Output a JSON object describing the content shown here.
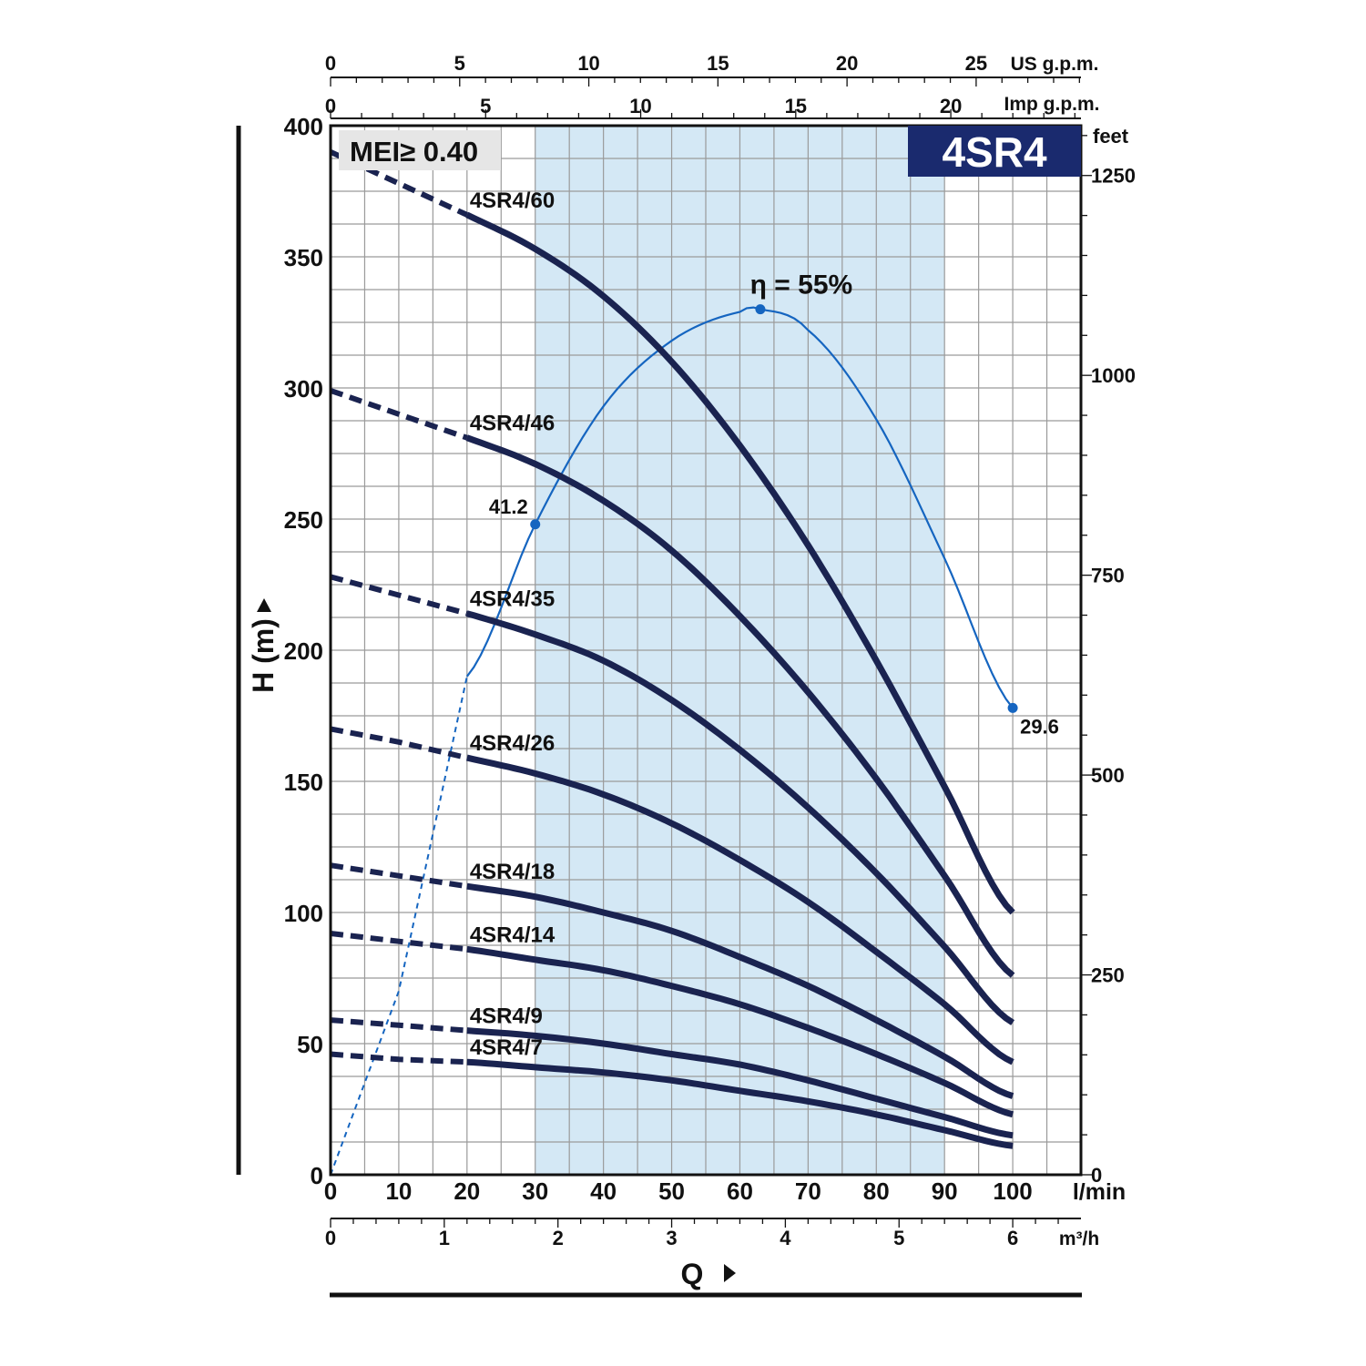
{
  "chart_data": {
    "type": "line",
    "title": "4SR4",
    "badge": "MEI≥ 0.40",
    "xlabel": "Q",
    "ylabel": "H (m)",
    "x_unit": "l/min",
    "xlim": [
      0,
      110
    ],
    "ylim": [
      0,
      400
    ],
    "grid": true,
    "x_ticks": [
      "0",
      "10",
      "20",
      "30",
      "40",
      "50",
      "60",
      "70",
      "80",
      "90",
      "100"
    ],
    "y_ticks": [
      "0",
      "50",
      "100",
      "150",
      "200",
      "250",
      "300",
      "350",
      "400"
    ],
    "secondary_axes": {
      "us_gpm": {
        "unit": "US g.p.m.",
        "ticks": [
          "0",
          "5",
          "10",
          "15",
          "20",
          "25"
        ]
      },
      "imp_gpm": {
        "unit": "Imp g.p.m.",
        "ticks": [
          "0",
          "5",
          "10",
          "15",
          "20"
        ]
      },
      "m3h": {
        "unit": "m³/h",
        "ticks": [
          "0",
          "1",
          "2",
          "3",
          "4",
          "5",
          "6"
        ]
      },
      "feet": {
        "unit": "feet",
        "ticks": [
          "0",
          "250",
          "500",
          "750",
          "1000",
          "1250"
        ]
      }
    },
    "recommended_range_lpm": [
      30,
      90
    ],
    "series": [
      {
        "name": "4SR4/60",
        "x": [
          0,
          10,
          20,
          30,
          40,
          50,
          60,
          70,
          80,
          90,
          100
        ],
        "y": [
          390,
          378,
          366,
          353,
          335,
          310,
          278,
          240,
          196,
          148,
          100
        ]
      },
      {
        "name": "4SR4/46",
        "x": [
          0,
          10,
          20,
          30,
          40,
          50,
          60,
          70,
          80,
          90,
          100
        ],
        "y": [
          299,
          290,
          281,
          271,
          257,
          238,
          213,
          184,
          151,
          114,
          76
        ]
      },
      {
        "name": "4SR4/35",
        "x": [
          0,
          10,
          20,
          30,
          40,
          50,
          60,
          70,
          80,
          90,
          100
        ],
        "y": [
          228,
          221,
          214,
          206,
          196,
          181,
          162,
          140,
          115,
          87,
          58
        ]
      },
      {
        "name": "4SR4/26",
        "x": [
          0,
          10,
          20,
          30,
          40,
          50,
          60,
          70,
          80,
          90,
          100
        ],
        "y": [
          170,
          165,
          159,
          153,
          145,
          134,
          120,
          104,
          85,
          65,
          43
        ]
      },
      {
        "name": "4SR4/18",
        "x": [
          0,
          10,
          20,
          30,
          40,
          50,
          60,
          70,
          80,
          90,
          100
        ],
        "y": [
          118,
          114,
          110,
          106,
          100,
          93,
          83,
          72,
          59,
          45,
          30
        ]
      },
      {
        "name": "4SR4/14",
        "x": [
          0,
          10,
          20,
          30,
          40,
          50,
          60,
          70,
          80,
          90,
          100
        ],
        "y": [
          92,
          89,
          86,
          82,
          78,
          72,
          65,
          56,
          46,
          35,
          23
        ]
      },
      {
        "name": "4SR4/9",
        "x": [
          0,
          10,
          20,
          30,
          40,
          50,
          60,
          70,
          80,
          90,
          100
        ],
        "y": [
          59,
          57,
          55,
          53,
          50,
          46,
          42,
          36,
          29,
          22,
          15
        ]
      },
      {
        "name": "4SR4/7",
        "x": [
          0,
          10,
          20,
          30,
          40,
          50,
          60,
          70,
          80,
          90,
          100
        ],
        "y": [
          46,
          44,
          43,
          41,
          39,
          36,
          32,
          28,
          23,
          17,
          11
        ]
      }
    ],
    "efficiency_curve": {
      "label": "η = 55%",
      "x": [
        0,
        10,
        20,
        30,
        40,
        50,
        60,
        63,
        70,
        80,
        90,
        100
      ],
      "y": [
        0,
        70,
        190,
        248,
        293,
        318,
        329,
        330,
        322,
        288,
        235,
        178
      ],
      "points": [
        {
          "x": 30,
          "y": 248,
          "label": "41.2"
        },
        {
          "x": 63,
          "y": 330,
          "label": ""
        },
        {
          "x": 100,
          "y": 178,
          "label": "29.6"
        }
      ]
    },
    "colors": {
      "curve": "#1a2350",
      "efficiency": "#1565c0",
      "range": "#d4e8f5",
      "badge": "#1a2a6e"
    }
  }
}
